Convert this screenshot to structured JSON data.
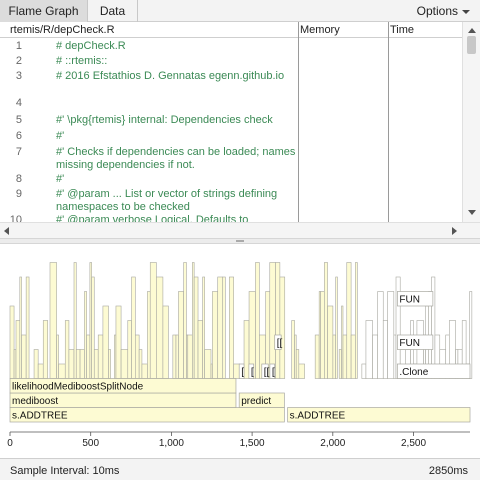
{
  "tabs": [
    {
      "label": "Flame Graph",
      "active": true
    },
    {
      "label": "Data",
      "active": false
    }
  ],
  "options_label": "Options",
  "source": {
    "file_path": "rtemis/R/depCheck.R",
    "columns": {
      "memory": "Memory",
      "time": "Time"
    },
    "lines": [
      {
        "n": "1",
        "text": "# depCheck.R"
      },
      {
        "n": "2",
        "text": "# ::rtemis::"
      },
      {
        "n": "3",
        "text": "# 2016 Efstathios D. Gennatas egenn.github.io"
      },
      {
        "n": "4",
        "text": ""
      },
      {
        "n": "5",
        "text": "#' \\pkg{rtemis} internal: Dependencies check"
      },
      {
        "n": "6",
        "text": "#'"
      },
      {
        "n": "7",
        "text": "#' Checks if dependencies can be loaded; names missing dependencies if not."
      },
      {
        "n": "8",
        "text": "#'"
      },
      {
        "n": "9",
        "text": "#' @param ... List or vector of strings defining namespaces to be checked"
      },
      {
        "n": "10",
        "text": "#' @param verbose Logical. Defaults to"
      }
    ]
  },
  "flame": {
    "frames": [
      {
        "label": "s.ADDTREE",
        "start": 0,
        "end": 1700,
        "depth": 0
      },
      {
        "label": "s.ADDTREE",
        "start": 1720,
        "end": 2850,
        "depth": 0
      },
      {
        "label": "mediboost",
        "start": 0,
        "end": 1400,
        "depth": 1
      },
      {
        "label": "predict",
        "start": 1420,
        "end": 1700,
        "depth": 1
      },
      {
        "label": "likelihoodMediboostSplitNode",
        "start": 0,
        "end": 1400,
        "depth": 2
      },
      {
        "label": ".Clone",
        "start": 2400,
        "end": 2850,
        "depth": 3
      },
      {
        "label": "[",
        "start": 1420,
        "end": 1450,
        "depth": 3
      },
      {
        "label": "[",
        "start": 1480,
        "end": 1510,
        "depth": 3
      },
      {
        "label": "[[",
        "start": 1560,
        "end": 1600,
        "depth": 3
      },
      {
        "label": "[",
        "start": 1610,
        "end": 1640,
        "depth": 3
      },
      {
        "label": "[[",
        "start": 1640,
        "end": 1680,
        "depth": 5
      },
      {
        "label": "FUN",
        "start": 2400,
        "end": 2620,
        "depth": 5
      },
      {
        "label": "FUN",
        "start": 2400,
        "end": 2620,
        "depth": 8
      }
    ],
    "axis_ticks": [
      "0",
      "500",
      "1,000",
      "1,500",
      "2,000",
      "2,500"
    ],
    "total_ms": 2850
  },
  "colors": {
    "frame_fill": "#fdfbd3",
    "frame_fill_alt": "#ffffff",
    "frame_stroke": "#a8a8a0",
    "code_green": "#3b8a55"
  },
  "status": {
    "sample_interval": "Sample Interval: 10ms",
    "total": "2850ms"
  }
}
